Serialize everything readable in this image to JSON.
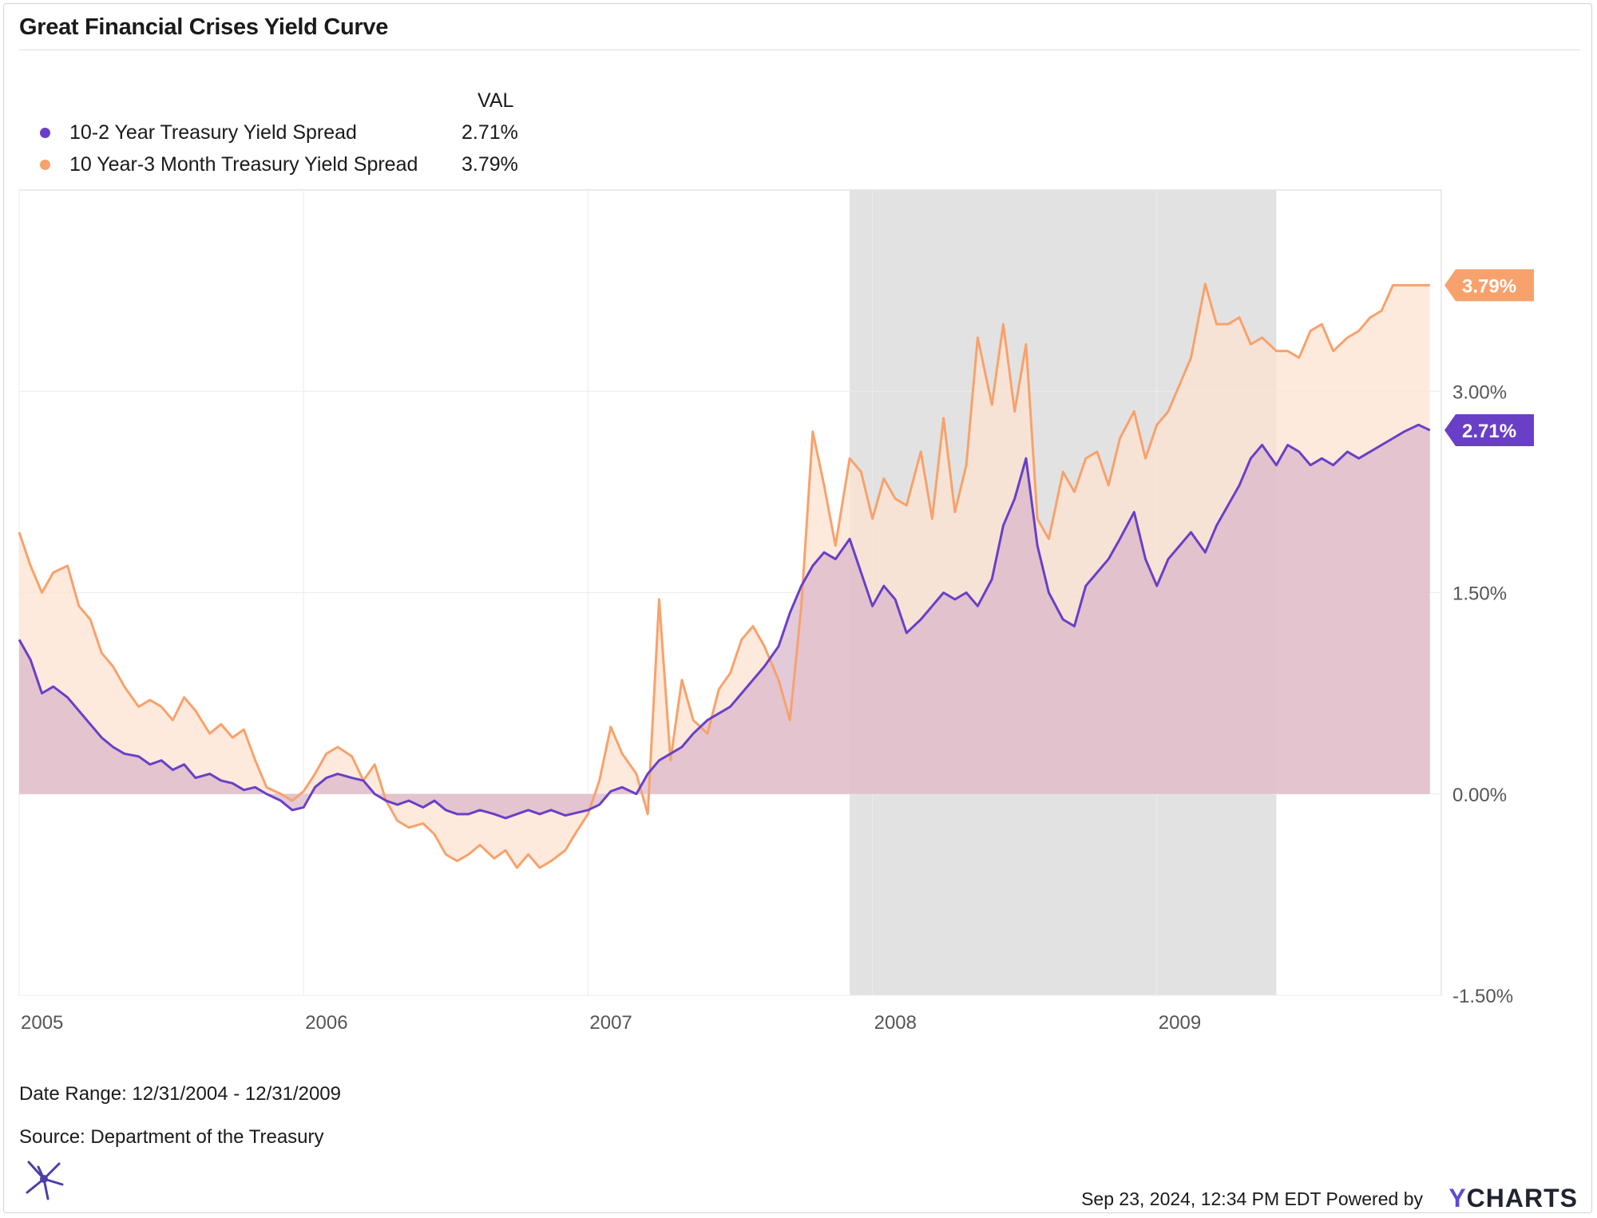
{
  "title": "Great Financial Crises Yield Curve",
  "legend": {
    "header": "VAL",
    "items": [
      {
        "name": "10-2 Year Treasury Yield Spread",
        "value": "2.71%",
        "color": "#6a3fc7"
      },
      {
        "name": "10 Year-3 Month Treasury Yield Spread",
        "value": "3.79%",
        "color": "#f7a26c"
      }
    ]
  },
  "footer": {
    "date_range": "Date Range: 12/31/2004 - 12/31/2009",
    "source": "Source: Department of the Treasury",
    "timestamp": "Sep 23, 2024, 12:34 PM EDT Powered by",
    "brand_y": "Y",
    "brand_rest": "CHARTS"
  },
  "colors": {
    "series1": "#6a3fc7",
    "series2": "#f7a26c",
    "fill1": "#d7b3c9",
    "fill2": "#fde3d2",
    "recession": "#e2e2e2",
    "grid": "#ececec"
  },
  "chart_data": {
    "type": "line",
    "xlim": [
      2005.0,
      2010.0
    ],
    "ylim": [
      -1.5,
      4.5
    ],
    "x_ticks": [
      {
        "value": 2005,
        "label": "2005"
      },
      {
        "value": 2006,
        "label": "2006"
      },
      {
        "value": 2007,
        "label": "2007"
      },
      {
        "value": 2008,
        "label": "2008"
      },
      {
        "value": 2009,
        "label": "2009"
      }
    ],
    "y_ticks": [
      {
        "value": 3.0,
        "label": "3.00%"
      },
      {
        "value": 1.5,
        "label": "1.50%"
      },
      {
        "value": 0.0,
        "label": "0.00%"
      },
      {
        "value": -1.5,
        "label": "-1.50%"
      }
    ],
    "recession_band": [
      2007.92,
      2009.42
    ],
    "grid": true,
    "area_fill": true,
    "series": [
      {
        "name": "10-2 Year Treasury Yield Spread",
        "end_label": "2.71%",
        "x": [
          2005.0,
          2005.04,
          2005.08,
          2005.12,
          2005.17,
          2005.21,
          2005.25,
          2005.29,
          2005.33,
          2005.37,
          2005.42,
          2005.46,
          2005.5,
          2005.54,
          2005.58,
          2005.62,
          2005.67,
          2005.71,
          2005.75,
          2005.79,
          2005.83,
          2005.87,
          2005.92,
          2005.96,
          2006.0,
          2006.04,
          2006.08,
          2006.12,
          2006.17,
          2006.21,
          2006.25,
          2006.29,
          2006.33,
          2006.37,
          2006.42,
          2006.46,
          2006.5,
          2006.54,
          2006.58,
          2006.62,
          2006.67,
          2006.71,
          2006.75,
          2006.79,
          2006.83,
          2006.87,
          2006.92,
          2006.96,
          2007.0,
          2007.04,
          2007.08,
          2007.12,
          2007.17,
          2007.21,
          2007.25,
          2007.29,
          2007.33,
          2007.37,
          2007.42,
          2007.46,
          2007.5,
          2007.54,
          2007.58,
          2007.62,
          2007.67,
          2007.71,
          2007.75,
          2007.79,
          2007.83,
          2007.87,
          2007.92,
          2007.96,
          2008.0,
          2008.04,
          2008.08,
          2008.12,
          2008.17,
          2008.21,
          2008.25,
          2008.29,
          2008.33,
          2008.37,
          2008.42,
          2008.46,
          2008.5,
          2008.54,
          2008.58,
          2008.62,
          2008.67,
          2008.71,
          2008.75,
          2008.79,
          2008.83,
          2008.87,
          2008.92,
          2008.96,
          2009.0,
          2009.04,
          2009.08,
          2009.12,
          2009.17,
          2009.21,
          2009.25,
          2009.29,
          2009.33,
          2009.37,
          2009.42,
          2009.46,
          2009.5,
          2009.54,
          2009.58,
          2009.62,
          2009.67,
          2009.71,
          2009.75,
          2009.79,
          2009.83,
          2009.87,
          2009.92,
          2009.96
        ],
        "values": [
          1.15,
          1.0,
          0.75,
          0.8,
          0.72,
          0.62,
          0.52,
          0.42,
          0.35,
          0.3,
          0.28,
          0.22,
          0.25,
          0.18,
          0.22,
          0.12,
          0.15,
          0.1,
          0.08,
          0.03,
          0.05,
          0.0,
          -0.05,
          -0.12,
          -0.1,
          0.05,
          0.12,
          0.15,
          0.12,
          0.1,
          0.0,
          -0.05,
          -0.08,
          -0.05,
          -0.1,
          -0.05,
          -0.12,
          -0.15,
          -0.15,
          -0.12,
          -0.15,
          -0.18,
          -0.15,
          -0.12,
          -0.15,
          -0.12,
          -0.16,
          -0.14,
          -0.12,
          -0.08,
          0.02,
          0.05,
          0.0,
          0.15,
          0.25,
          0.3,
          0.35,
          0.45,
          0.55,
          0.6,
          0.65,
          0.75,
          0.85,
          0.95,
          1.1,
          1.35,
          1.55,
          1.7,
          1.8,
          1.75,
          1.9,
          1.65,
          1.4,
          1.55,
          1.45,
          1.2,
          1.3,
          1.4,
          1.5,
          1.45,
          1.5,
          1.4,
          1.6,
          2.0,
          2.2,
          2.5,
          1.85,
          1.5,
          1.3,
          1.25,
          1.55,
          1.65,
          1.75,
          1.9,
          2.1,
          1.75,
          1.55,
          1.75,
          1.85,
          1.95,
          1.8,
          2.0,
          2.15,
          2.3,
          2.5,
          2.6,
          2.45,
          2.6,
          2.55,
          2.45,
          2.5,
          2.45,
          2.55,
          2.5,
          2.55,
          2.6,
          2.65,
          2.7,
          2.75,
          2.71
        ]
      },
      {
        "name": "10 Year-3 Month Treasury Yield Spread",
        "end_label": "3.79%",
        "x": [
          2005.0,
          2005.04,
          2005.08,
          2005.12,
          2005.17,
          2005.21,
          2005.25,
          2005.29,
          2005.33,
          2005.37,
          2005.42,
          2005.46,
          2005.5,
          2005.54,
          2005.58,
          2005.62,
          2005.67,
          2005.71,
          2005.75,
          2005.79,
          2005.83,
          2005.87,
          2005.92,
          2005.96,
          2006.0,
          2006.04,
          2006.08,
          2006.12,
          2006.17,
          2006.21,
          2006.25,
          2006.29,
          2006.33,
          2006.37,
          2006.42,
          2006.46,
          2006.5,
          2006.54,
          2006.58,
          2006.62,
          2006.67,
          2006.71,
          2006.75,
          2006.79,
          2006.83,
          2006.87,
          2006.92,
          2006.96,
          2007.0,
          2007.04,
          2007.08,
          2007.12,
          2007.17,
          2007.21,
          2007.25,
          2007.29,
          2007.33,
          2007.37,
          2007.42,
          2007.46,
          2007.5,
          2007.54,
          2007.58,
          2007.62,
          2007.67,
          2007.71,
          2007.75,
          2007.79,
          2007.83,
          2007.87,
          2007.92,
          2007.96,
          2008.0,
          2008.04,
          2008.08,
          2008.12,
          2008.17,
          2008.21,
          2008.25,
          2008.29,
          2008.33,
          2008.37,
          2008.42,
          2008.46,
          2008.5,
          2008.54,
          2008.58,
          2008.62,
          2008.67,
          2008.71,
          2008.75,
          2008.79,
          2008.83,
          2008.87,
          2008.92,
          2008.96,
          2009.0,
          2009.04,
          2009.08,
          2009.12,
          2009.17,
          2009.21,
          2009.25,
          2009.29,
          2009.33,
          2009.37,
          2009.42,
          2009.46,
          2009.5,
          2009.54,
          2009.58,
          2009.62,
          2009.67,
          2009.71,
          2009.75,
          2009.79,
          2009.83,
          2009.87,
          2009.92,
          2009.96
        ],
        "values": [
          1.95,
          1.7,
          1.5,
          1.65,
          1.7,
          1.4,
          1.3,
          1.05,
          0.95,
          0.8,
          0.65,
          0.7,
          0.65,
          0.55,
          0.72,
          0.62,
          0.45,
          0.52,
          0.42,
          0.48,
          0.25,
          0.05,
          0.0,
          -0.05,
          0.02,
          0.15,
          0.3,
          0.35,
          0.28,
          0.1,
          0.22,
          -0.05,
          -0.2,
          -0.25,
          -0.22,
          -0.3,
          -0.45,
          -0.5,
          -0.45,
          -0.38,
          -0.48,
          -0.42,
          -0.55,
          -0.45,
          -0.55,
          -0.5,
          -0.42,
          -0.28,
          -0.15,
          0.1,
          0.5,
          0.3,
          0.15,
          -0.15,
          1.45,
          0.25,
          0.85,
          0.55,
          0.45,
          0.78,
          0.9,
          1.15,
          1.25,
          1.1,
          0.85,
          0.55,
          1.4,
          2.7,
          2.3,
          1.85,
          2.5,
          2.4,
          2.05,
          2.35,
          2.2,
          2.15,
          2.55,
          2.05,
          2.8,
          2.1,
          2.45,
          3.4,
          2.9,
          3.5,
          2.85,
          3.35,
          2.05,
          1.9,
          2.4,
          2.25,
          2.5,
          2.55,
          2.3,
          2.65,
          2.85,
          2.5,
          2.75,
          2.85,
          3.05,
          3.25,
          3.8,
          3.5,
          3.5,
          3.55,
          3.35,
          3.4,
          3.3,
          3.3,
          3.25,
          3.45,
          3.5,
          3.3,
          3.4,
          3.45,
          3.55,
          3.6,
          3.79,
          3.79,
          3.79,
          3.79
        ]
      }
    ]
  }
}
